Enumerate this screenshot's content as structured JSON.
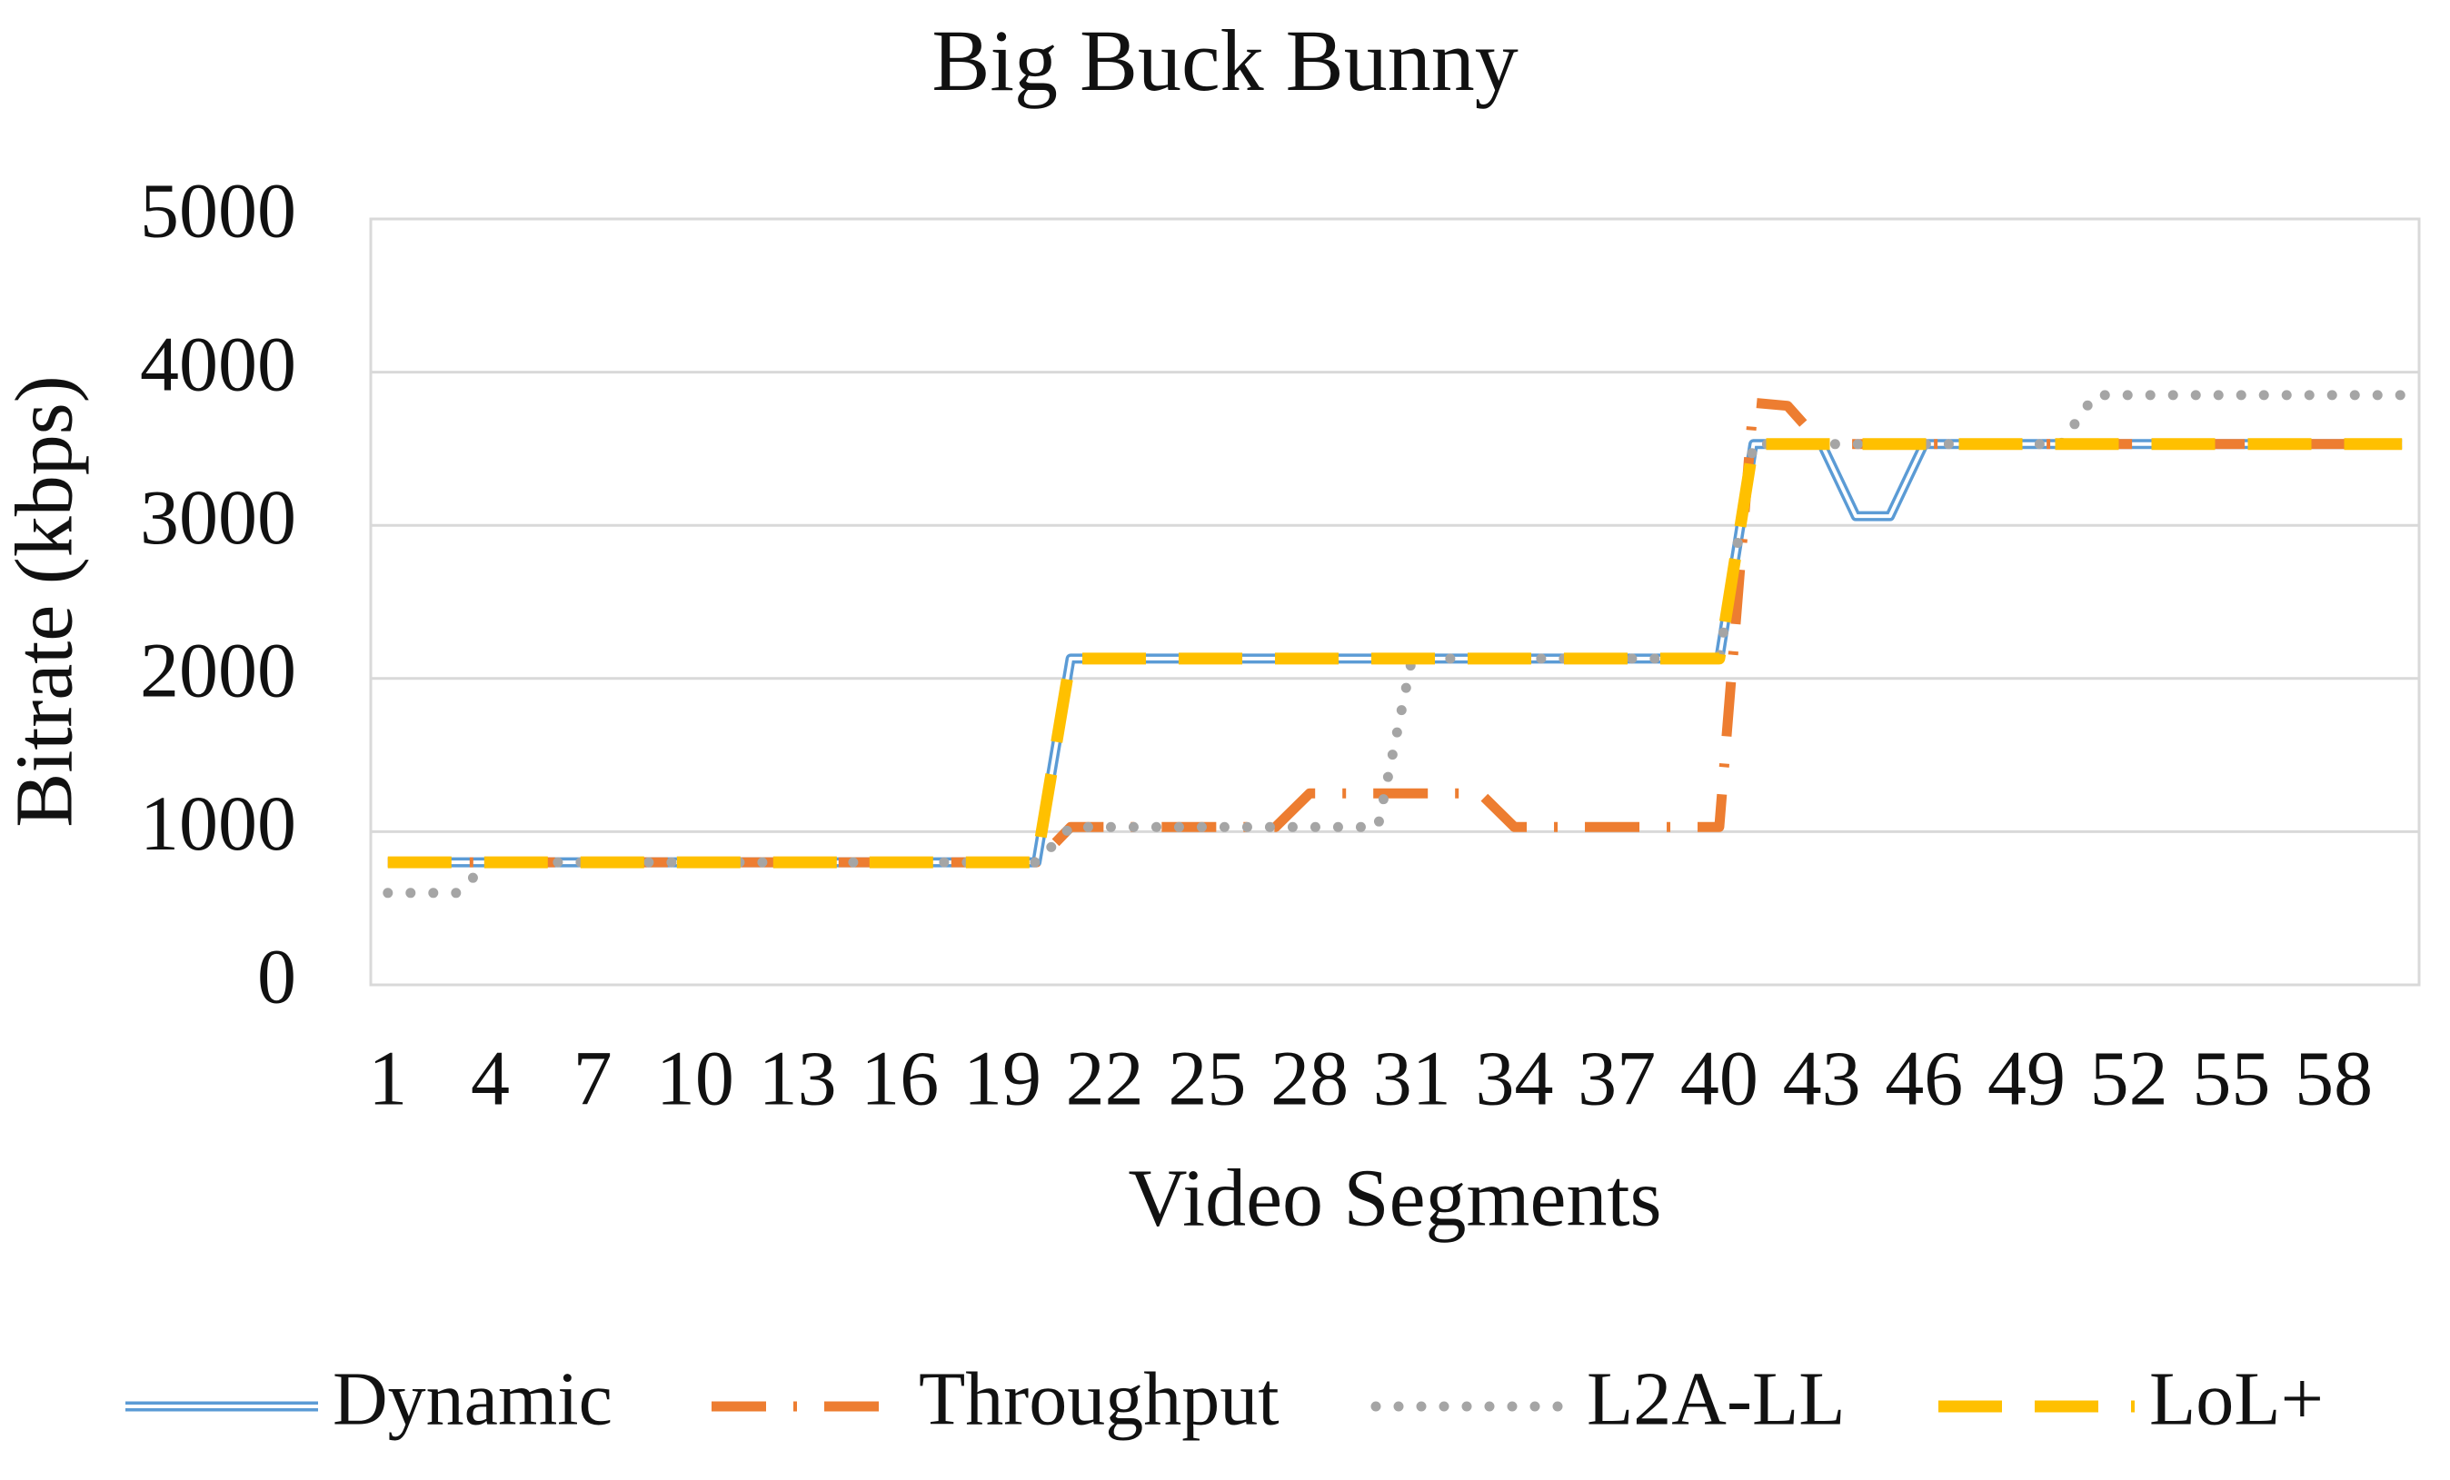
{
  "chart_data": {
    "type": "line",
    "title": "Big Buck Bunny",
    "x_label": "Video Segments",
    "y_label": "Bitrate (kbps)",
    "categories": [
      1,
      null,
      null,
      4,
      null,
      null,
      7,
      null,
      null,
      10,
      null,
      null,
      13,
      null,
      null,
      16,
      null,
      null,
      19,
      null,
      null,
      22,
      null,
      null,
      25,
      null,
      null,
      28,
      null,
      null,
      31,
      null,
      null,
      34,
      null,
      null,
      37,
      null,
      null,
      40,
      null,
      null,
      43,
      null,
      null,
      46,
      null,
      null,
      49,
      null,
      null,
      52,
      null,
      null,
      55,
      null,
      null,
      58,
      null,
      null
    ],
    "ylim": [
      0,
      5000
    ],
    "yticks": [
      0,
      1000,
      2000,
      3000,
      4000,
      5000
    ],
    "grid": true,
    "legend": "bottom",
    "series": [
      {
        "name": "Dynamic",
        "color": "#5b9bd5",
        "line_style": "double",
        "values": [
          800,
          800,
          800,
          800,
          800,
          800,
          800,
          800,
          800,
          800,
          800,
          800,
          800,
          800,
          800,
          800,
          800,
          800,
          800,
          800,
          2130,
          2130,
          2130,
          2130,
          2130,
          2130,
          2130,
          2130,
          2130,
          2130,
          2130,
          2130,
          2130,
          2130,
          2130,
          2130,
          2130,
          2130,
          2130,
          2130,
          3530,
          3530,
          3530,
          3060,
          3060,
          3530,
          3530,
          3530,
          3530,
          3530,
          3530,
          3530,
          3530,
          3530,
          3530,
          3530,
          3530,
          3530,
          3530,
          3530
        ]
      },
      {
        "name": "Throughput",
        "color": "#ed7d31",
        "line_style": "dash-dot",
        "values": [
          800,
          800,
          800,
          800,
          800,
          800,
          800,
          800,
          800,
          800,
          800,
          800,
          800,
          800,
          800,
          800,
          800,
          800,
          800,
          800,
          1030,
          1030,
          1030,
          1030,
          1030,
          1030,
          1030,
          1250,
          1250,
          1250,
          1250,
          1250,
          1250,
          1030,
          1030,
          1030,
          1030,
          1030,
          1030,
          1030,
          3800,
          3780,
          3530,
          3530,
          3530,
          3530,
          3530,
          3530,
          3530,
          3530,
          3530,
          3530,
          3530,
          3530,
          3530,
          3530,
          3530,
          3530,
          3530,
          3530
        ]
      },
      {
        "name": "L2A-LL",
        "color": "#a5a5a5",
        "line_style": "dotted",
        "values": [
          600,
          600,
          600,
          800,
          800,
          800,
          800,
          800,
          800,
          800,
          800,
          800,
          800,
          800,
          800,
          800,
          800,
          800,
          800,
          800,
          1030,
          1030,
          1030,
          1030,
          1030,
          1030,
          1030,
          1030,
          1030,
          1030,
          2130,
          2130,
          2130,
          2130,
          2130,
          2130,
          2130,
          2130,
          2130,
          2130,
          3530,
          3530,
          3530,
          3530,
          3530,
          3530,
          3530,
          3530,
          3530,
          3530,
          3850,
          3850,
          3850,
          3850,
          3850,
          3850,
          3850,
          3850,
          3850,
          3850
        ]
      },
      {
        "name": "LoL+",
        "color": "#ffc000",
        "line_style": "dashed",
        "values": [
          800,
          800,
          800,
          800,
          800,
          800,
          800,
          800,
          800,
          800,
          800,
          800,
          800,
          800,
          800,
          800,
          800,
          800,
          800,
          800,
          2130,
          2130,
          2130,
          2130,
          2130,
          2130,
          2130,
          2130,
          2130,
          2130,
          2130,
          2130,
          2130,
          2130,
          2130,
          2130,
          2130,
          2130,
          2130,
          2130,
          3530,
          3530,
          3530,
          3530,
          3530,
          3530,
          3530,
          3530,
          3530,
          3530,
          3530,
          3530,
          3530,
          3530,
          3530,
          3530,
          3530,
          3530,
          3530,
          3530
        ]
      }
    ]
  }
}
